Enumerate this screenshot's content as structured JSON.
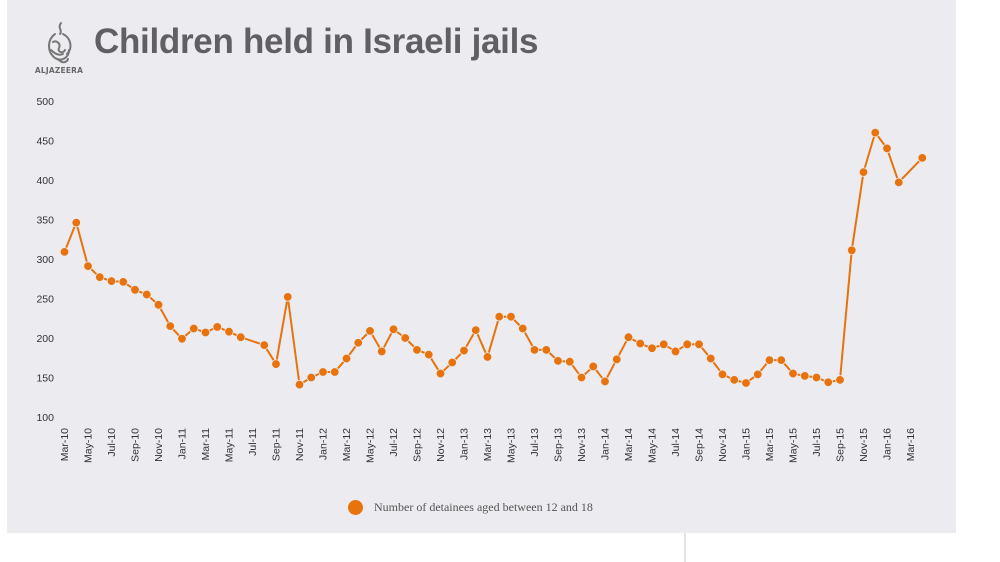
{
  "header": {
    "logo_text": "ALJAZEERA",
    "logo_icon": "aljazeera-calligraphy-logo",
    "title": "Children held in Israeli jails"
  },
  "colors": {
    "series": "#e8720c",
    "panel_background": "#ebebf0",
    "title": "#5f5f64"
  },
  "chart_data": {
    "type": "line",
    "title": "Children held in Israeli jails",
    "xlabel": "",
    "ylabel": "",
    "ylim": [
      100,
      500
    ],
    "yticks": [
      100,
      150,
      200,
      250,
      300,
      350,
      400,
      450,
      500
    ],
    "grid": false,
    "legend_position": "bottom-center",
    "x": [
      "Mar-10",
      "Apr-10",
      "May-10",
      "Jun-10",
      "Jul-10",
      "Aug-10",
      "Sep-10",
      "Oct-10",
      "Nov-10",
      "Dec-10",
      "Jan-11",
      "Feb-11",
      "Mar-11",
      "Apr-11",
      "May-11",
      "Jun-11",
      "Jul-11",
      "Aug-11",
      "Sep-11",
      "Oct-11",
      "Nov-11",
      "Dec-11",
      "Jan-12",
      "Feb-12",
      "Mar-12",
      "Apr-12",
      "May-12",
      "Jun-12",
      "Jul-12",
      "Aug-12",
      "Sep-12",
      "Oct-12",
      "Nov-12",
      "Dec-12",
      "Jan-13",
      "Feb-13",
      "Mar-13",
      "Apr-13",
      "May-13",
      "Jun-13",
      "Jul-13",
      "Aug-13",
      "Sep-13",
      "Oct-13",
      "Nov-13",
      "Dec-13",
      "Jan-14",
      "Feb-14",
      "Mar-14",
      "Apr-14",
      "May-14",
      "Jun-14",
      "Jul-14",
      "Aug-14",
      "Sep-14",
      "Oct-14",
      "Nov-14",
      "Dec-14",
      "Jan-15",
      "Feb-15",
      "Mar-15",
      "Apr-15",
      "May-15",
      "Jun-15",
      "Jul-15",
      "Aug-15",
      "Sep-15",
      "Oct-15",
      "Nov-15",
      "Dec-15",
      "Jan-16",
      "Feb-16",
      "Mar-16",
      "Apr-16"
    ],
    "xtick_labels": [
      "Mar-10",
      "May-10",
      "Jul-10",
      "Sep-10",
      "Nov-10",
      "Jan-11",
      "Mar-11",
      "May-11",
      "Jul-11",
      "Sep-11",
      "Nov-11",
      "Jan-12",
      "Mar-12",
      "May-12",
      "Jul-12",
      "Sep-12",
      "Nov-12",
      "Jan-13",
      "Mar-13",
      "May-13",
      "Jul-13",
      "Sep-13",
      "Nov-13",
      "Jan-14",
      "Mar-14",
      "May-14",
      "Jul-14",
      "Sep-14",
      "Nov-14",
      "Jan-15",
      "Mar-15",
      "May-15",
      "Jul-15",
      "Sep-15",
      "Nov-15",
      "Jan-16",
      "Mar-16"
    ],
    "series": [
      {
        "name": "Number of detainees aged between 12 and 18",
        "color": "#e8720c",
        "values": [
          309,
          346,
          291,
          277,
          272,
          271,
          261,
          255,
          242,
          215,
          199,
          212,
          207,
          214,
          208,
          201,
          null,
          191,
          167,
          252,
          141,
          150,
          157,
          157,
          174,
          194,
          209,
          183,
          211,
          200,
          185,
          179,
          155,
          169,
          184,
          210,
          176,
          227,
          227,
          212,
          185,
          185,
          171,
          170,
          150,
          164,
          145,
          173,
          201,
          193,
          187,
          192,
          183,
          192,
          192,
          174,
          154,
          147,
          143,
          154,
          172,
          172,
          155,
          152,
          150,
          144,
          147,
          311,
          410,
          460,
          440,
          397,
          null,
          428
        ]
      }
    ]
  }
}
